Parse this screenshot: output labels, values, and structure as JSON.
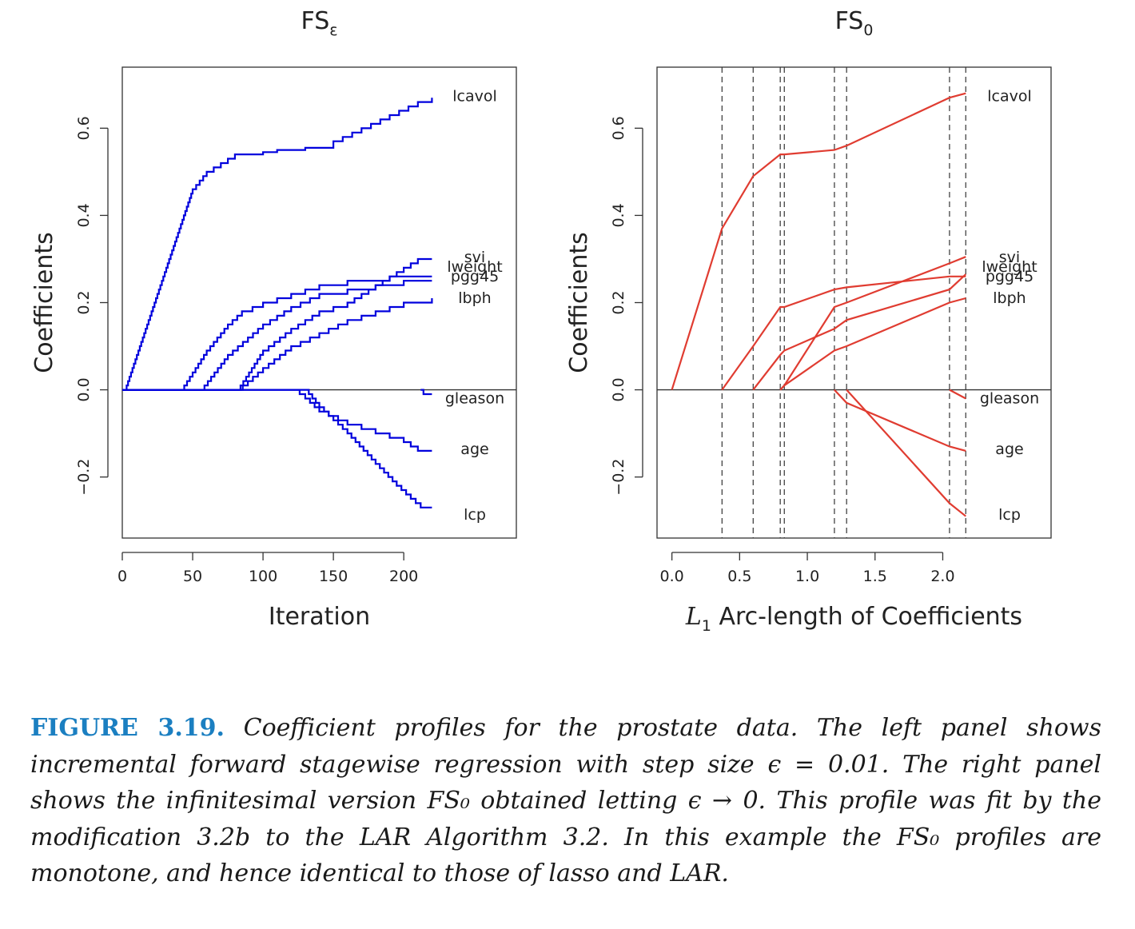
{
  "chart_data": [
    {
      "type": "line",
      "style": "step",
      "title": "FS",
      "title_subscript": "ε",
      "xlabel": "Iteration",
      "ylabel": "Coefficients",
      "xlim": [
        0,
        280
      ],
      "ylim": [
        -0.34,
        0.74
      ],
      "xticks": [
        0,
        50,
        100,
        150,
        200
      ],
      "yticks": [
        -0.2,
        0.0,
        0.2,
        0.4,
        0.6
      ],
      "line_color": "#0000dd",
      "grid": false,
      "zero_line": true,
      "series": [
        {
          "name": "lcavol",
          "points": [
            [
              0,
              0
            ],
            [
              2,
              0
            ],
            [
              50,
              0.46
            ],
            [
              60,
              0.5
            ],
            [
              70,
              0.52
            ],
            [
              80,
              0.54
            ],
            [
              90,
              0.54
            ],
            [
              100,
              0.545
            ],
            [
              110,
              0.55
            ],
            [
              130,
              0.555
            ],
            [
              150,
              0.57
            ],
            [
              170,
              0.6
            ],
            [
              190,
              0.63
            ],
            [
              210,
              0.66
            ],
            [
              220,
              0.67
            ]
          ]
        },
        {
          "name": "svi",
          "points": [
            [
              0,
              0
            ],
            [
              82,
              0
            ],
            [
              100,
              0.09
            ],
            [
              120,
              0.14
            ],
            [
              140,
              0.18
            ],
            [
              160,
              0.2
            ],
            [
              180,
              0.24
            ],
            [
              200,
              0.28
            ],
            [
              210,
              0.3
            ],
            [
              220,
              0.3
            ]
          ]
        },
        {
          "name": "lweight",
          "points": [
            [
              0,
              0
            ],
            [
              42,
              0
            ],
            [
              60,
              0.09
            ],
            [
              75,
              0.15
            ],
            [
              85,
              0.18
            ],
            [
              100,
              0.2
            ],
            [
              120,
              0.22
            ],
            [
              140,
              0.24
            ],
            [
              160,
              0.25
            ],
            [
              190,
              0.26
            ],
            [
              220,
              0.26
            ]
          ]
        },
        {
          "name": "pgg45",
          "points": [
            [
              0,
              0
            ],
            [
              56,
              0
            ],
            [
              75,
              0.08
            ],
            [
              100,
              0.15
            ],
            [
              120,
              0.19
            ],
            [
              140,
              0.22
            ],
            [
              160,
              0.23
            ],
            [
              180,
              0.24
            ],
            [
              200,
              0.25
            ],
            [
              220,
              0.25
            ]
          ]
        },
        {
          "name": "lbph",
          "points": [
            [
              0,
              0
            ],
            [
              82,
              0
            ],
            [
              100,
              0.05
            ],
            [
              120,
              0.1
            ],
            [
              140,
              0.13
            ],
            [
              160,
              0.16
            ],
            [
              180,
              0.18
            ],
            [
              200,
              0.2
            ],
            [
              220,
              0.21
            ]
          ]
        },
        {
          "name": "gleason",
          "points": [
            [
              212,
              0
            ],
            [
              214,
              -0.01
            ],
            [
              220,
              -0.01
            ]
          ]
        },
        {
          "name": "age",
          "points": [
            [
              0,
              0
            ],
            [
              122,
              0
            ],
            [
              130,
              -0.02
            ],
            [
              140,
              -0.05
            ],
            [
              160,
              -0.08
            ],
            [
              180,
              -0.1
            ],
            [
              200,
              -0.12
            ],
            [
              210,
              -0.14
            ],
            [
              220,
              -0.14
            ]
          ]
        },
        {
          "name": "lcp",
          "points": [
            [
              0,
              0
            ],
            [
              130,
              0
            ],
            [
              140,
              -0.04
            ],
            [
              160,
              -0.1
            ],
            [
              180,
              -0.17
            ],
            [
              195,
              -0.22
            ],
            [
              205,
              -0.25
            ],
            [
              212,
              -0.27
            ],
            [
              220,
              -0.27
            ]
          ]
        }
      ]
    },
    {
      "type": "line",
      "style": "piecewise-linear",
      "title": "FS",
      "title_subscript": "0",
      "xlabel_var": "L",
      "xlabel_sub": "1",
      "xlabel": "Arc-length of Coefficients",
      "ylabel": "Coefficients",
      "xlim": [
        -0.11,
        2.8
      ],
      "ylim": [
        -0.34,
        0.74
      ],
      "xticks": [
        0.0,
        0.5,
        1.0,
        1.5,
        2.0
      ],
      "xtick_labels": [
        "0.0",
        "0.5",
        "1.0",
        "1.5",
        "2.0"
      ],
      "yticks": [
        -0.2,
        0.0,
        0.2,
        0.4,
        0.6
      ],
      "line_color": "#e03c31",
      "grid": false,
      "zero_line": true,
      "knots": [
        0.37,
        0.6,
        0.8,
        0.83,
        1.2,
        1.29,
        2.05,
        2.17
      ],
      "series": [
        {
          "name": "lcavol",
          "points": [
            [
              0,
              0
            ],
            [
              0.37,
              0.37
            ],
            [
              0.6,
              0.49
            ],
            [
              0.8,
              0.54
            ],
            [
              0.83,
              0.54
            ],
            [
              1.2,
              0.55
            ],
            [
              1.29,
              0.56
            ],
            [
              2.05,
              0.67
            ],
            [
              2.17,
              0.68
            ]
          ]
        },
        {
          "name": "svi",
          "points": [
            [
              0.8,
              0
            ],
            [
              0.83,
              0.01
            ],
            [
              1.2,
              0.19
            ],
            [
              1.29,
              0.2
            ],
            [
              2.05,
              0.29
            ],
            [
              2.17,
              0.305
            ]
          ]
        },
        {
          "name": "lweight",
          "points": [
            [
              0.37,
              0
            ],
            [
              0.6,
              0.1
            ],
            [
              0.8,
              0.19
            ],
            [
              0.83,
              0.19
            ],
            [
              1.2,
              0.23
            ],
            [
              1.29,
              0.235
            ],
            [
              2.05,
              0.26
            ],
            [
              2.17,
              0.26
            ]
          ]
        },
        {
          "name": "pgg45",
          "points": [
            [
              0.6,
              0
            ],
            [
              0.8,
              0.08
            ],
            [
              0.83,
              0.09
            ],
            [
              1.2,
              0.14
            ],
            [
              1.29,
              0.16
            ],
            [
              2.05,
              0.23
            ],
            [
              2.17,
              0.265
            ]
          ]
        },
        {
          "name": "lbph",
          "points": [
            [
              0.8,
              0
            ],
            [
              0.83,
              0.01
            ],
            [
              1.2,
              0.09
            ],
            [
              1.29,
              0.1
            ],
            [
              2.05,
              0.2
            ],
            [
              2.17,
              0.21
            ]
          ]
        },
        {
          "name": "gleason",
          "points": [
            [
              2.05,
              0
            ],
            [
              2.17,
              -0.02
            ]
          ]
        },
        {
          "name": "age",
          "points": [
            [
              1.2,
              0
            ],
            [
              1.29,
              -0.03
            ],
            [
              2.05,
              -0.13
            ],
            [
              2.17,
              -0.14
            ]
          ]
        },
        {
          "name": "lcp",
          "points": [
            [
              1.29,
              0
            ],
            [
              2.05,
              -0.26
            ],
            [
              2.17,
              -0.29
            ]
          ]
        }
      ]
    }
  ],
  "labels": {
    "lcavol": {
      "text": "lcavol",
      "y": 0.675
    },
    "svi": {
      "text": "svi",
      "y": 0.305
    },
    "lweight": {
      "text": "lweight",
      "y": 0.283
    },
    "pgg45": {
      "text": "pgg45",
      "y": 0.261
    },
    "lbph": {
      "text": "lbph",
      "y": 0.212
    },
    "gleason": {
      "text": "gleason",
      "y": -0.018
    },
    "age": {
      "text": "age",
      "y": -0.135
    },
    "lcp": {
      "text": "lcp",
      "y": -0.285
    }
  },
  "caption": {
    "label": "FIGURE 3.19.",
    "text": "Coefficient profiles for the prostate data. The left panel shows incremental forward stagewise regression with step size ϵ = 0.01. The right panel shows the infinitesimal version FS₀ obtained letting ϵ → 0. This profile was fit by the modification 3.2b to the LAR Algorithm 3.2. In this example the FS₀ profiles are monotone, and hence identical to those of lasso and LAR."
  }
}
